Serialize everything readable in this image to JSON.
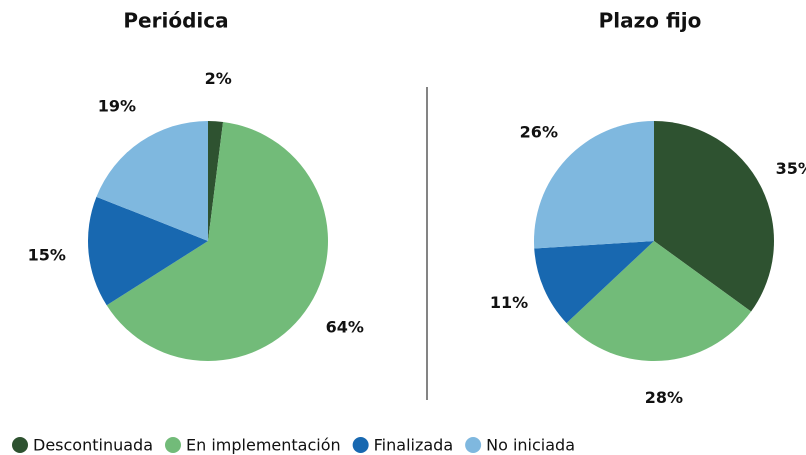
{
  "chart_data": [
    {
      "type": "pie",
      "title": "Periódica",
      "categories": [
        "Descontinuada",
        "En implementación",
        "Finalizada",
        "No iniciada"
      ],
      "values": [
        2,
        64,
        15,
        19
      ],
      "value_labels": [
        "2%",
        "64%",
        "15%",
        "19%"
      ],
      "colors": [
        "#2e5230",
        "#72bb79",
        "#1868b0",
        "#7fb8df"
      ],
      "legend": "bottom"
    },
    {
      "type": "pie",
      "title": "Plazo fijo",
      "categories": [
        "Descontinuada",
        "En implementación",
        "Finalizada",
        "No iniciada"
      ],
      "values": [
        35,
        28,
        11,
        26
      ],
      "value_labels": [
        "35%",
        "28%",
        "11%",
        "26%"
      ],
      "colors": [
        "#2e5230",
        "#72bb79",
        "#1868b0",
        "#7fb8df"
      ]
    }
  ]
}
